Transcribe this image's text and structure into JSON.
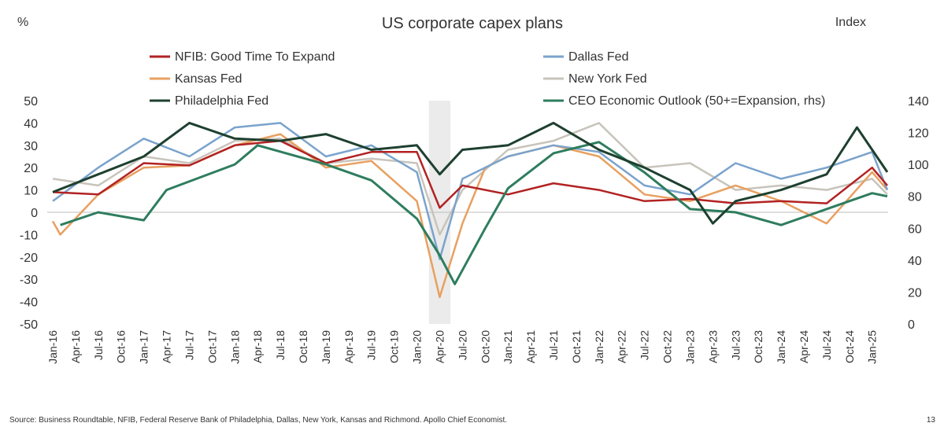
{
  "chart_data": {
    "type": "line",
    "title": "US corporate capex plans",
    "left_axis_unit": "%",
    "right_axis_unit": "Index",
    "source": "Source: Business Roundtable, NFIB, Federal Reserve Bank of Philadelphia, Dallas, New York, Kansas and Richmond. Apollo Chief Economist.",
    "page_number": "13",
    "y_left": {
      "min": -50,
      "max": 50,
      "ticks": [
        50,
        40,
        30,
        20,
        10,
        0,
        -10,
        -20,
        -30,
        -40,
        -50
      ]
    },
    "y_right": {
      "min": 0,
      "max": 140,
      "ticks": [
        140,
        120,
        100,
        80,
        60,
        40,
        20,
        0
      ]
    },
    "x_ticks": [
      "Jan-16",
      "Apr-16",
      "Jul-16",
      "Oct-16",
      "Jan-17",
      "Apr-17",
      "Jul-17",
      "Oct-17",
      "Jan-18",
      "Apr-18",
      "Jul-18",
      "Oct-18",
      "Jan-19",
      "Apr-19",
      "Jul-19",
      "Oct-19",
      "Jan-20",
      "Apr-20",
      "Jul-20",
      "Oct-20",
      "Jan-21",
      "Apr-21",
      "Jul-21",
      "Oct-21",
      "Jan-22",
      "Apr-22",
      "Jul-22",
      "Oct-22",
      "Jan-23",
      "Apr-23",
      "Jul-23",
      "Oct-23",
      "Jan-24",
      "Apr-24",
      "Jul-24",
      "Oct-24",
      "Jan-25"
    ],
    "recession_shade": {
      "from": "Mar-20",
      "to": "May-20"
    },
    "legend_placement": "top",
    "series": [
      {
        "name": "NFIB: Good Time To Expand",
        "color": "#b22222",
        "axis": "left",
        "points": [
          [
            "Jan-16",
            9
          ],
          [
            "Jul-16",
            8
          ],
          [
            "Jan-17",
            22
          ],
          [
            "Jul-17",
            21
          ],
          [
            "Jan-18",
            30
          ],
          [
            "Jul-18",
            32
          ],
          [
            "Jan-19",
            22
          ],
          [
            "Jul-19",
            27
          ],
          [
            "Jan-20",
            27
          ],
          [
            "Apr-20",
            2
          ],
          [
            "Jul-20",
            12
          ],
          [
            "Jan-21",
            8
          ],
          [
            "Jul-21",
            13
          ],
          [
            "Jan-22",
            10
          ],
          [
            "Jul-22",
            5
          ],
          [
            "Jan-23",
            6
          ],
          [
            "Jul-23",
            4
          ],
          [
            "Jan-24",
            5
          ],
          [
            "Jul-24",
            4
          ],
          [
            "Jan-25",
            20
          ],
          [
            "Mar-25",
            12
          ]
        ]
      },
      {
        "name": "Dallas Fed",
        "color": "#7aa3cc",
        "axis": "left",
        "points": [
          [
            "Jan-16",
            5
          ],
          [
            "Jul-16",
            20
          ],
          [
            "Jan-17",
            33
          ],
          [
            "Jul-17",
            25
          ],
          [
            "Jan-18",
            38
          ],
          [
            "Jul-18",
            40
          ],
          [
            "Jan-19",
            25
          ],
          [
            "Jul-19",
            30
          ],
          [
            "Jan-20",
            18
          ],
          [
            "Apr-20",
            -21
          ],
          [
            "Jul-20",
            15
          ],
          [
            "Jan-21",
            25
          ],
          [
            "Jul-21",
            30
          ],
          [
            "Jan-22",
            27
          ],
          [
            "Jul-22",
            12
          ],
          [
            "Jan-23",
            8
          ],
          [
            "Jul-23",
            22
          ],
          [
            "Jan-24",
            15
          ],
          [
            "Jul-24",
            20
          ],
          [
            "Jan-25",
            27
          ],
          [
            "Mar-25",
            10
          ]
        ]
      },
      {
        "name": "Kansas Fed",
        "color": "#e8a060",
        "axis": "left",
        "points": [
          [
            "Jan-16",
            -4
          ],
          [
            "Feb-16",
            -10
          ],
          [
            "Jul-16",
            8
          ],
          [
            "Jan-17",
            20
          ],
          [
            "Jul-17",
            21
          ],
          [
            "Jan-18",
            30
          ],
          [
            "Jul-18",
            35
          ],
          [
            "Jan-19",
            20
          ],
          [
            "Jul-19",
            23
          ],
          [
            "Jan-20",
            5
          ],
          [
            "Apr-20",
            -38
          ],
          [
            "Jul-20",
            -5
          ],
          [
            "Oct-20",
            20
          ],
          [
            "Jan-21",
            25
          ],
          [
            "Jul-21",
            30
          ],
          [
            "Jan-22",
            25
          ],
          [
            "Jul-22",
            8
          ],
          [
            "Jan-23",
            5
          ],
          [
            "Jul-23",
            12
          ],
          [
            "Jan-24",
            5
          ],
          [
            "Jul-24",
            -5
          ],
          [
            "Jan-25",
            18
          ],
          [
            "Mar-25",
            10
          ]
        ]
      },
      {
        "name": "New York Fed",
        "color": "#c8c4bc",
        "axis": "left",
        "points": [
          [
            "Jan-16",
            15
          ],
          [
            "Jul-16",
            12
          ],
          [
            "Jan-17",
            25
          ],
          [
            "Jul-17",
            22
          ],
          [
            "Jan-18",
            32
          ],
          [
            "Jul-18",
            33
          ],
          [
            "Jan-19",
            22
          ],
          [
            "Jul-19",
            24
          ],
          [
            "Jan-20",
            22
          ],
          [
            "Apr-20",
            -10
          ],
          [
            "Jul-20",
            10
          ],
          [
            "Jan-21",
            28
          ],
          [
            "Jul-21",
            32
          ],
          [
            "Jan-22",
            40
          ],
          [
            "Jul-22",
            20
          ],
          [
            "Jan-23",
            22
          ],
          [
            "Jul-23",
            10
          ],
          [
            "Jan-24",
            12
          ],
          [
            "Jul-24",
            10
          ],
          [
            "Jan-25",
            15
          ],
          [
            "Mar-25",
            8
          ]
        ]
      },
      {
        "name": "Philadelphia Fed",
        "color": "#1e4030",
        "axis": "left",
        "points": [
          [
            "Jan-16",
            9
          ],
          [
            "Jul-16",
            17
          ],
          [
            "Jan-17",
            25
          ],
          [
            "Jul-17",
            40
          ],
          [
            "Jan-18",
            33
          ],
          [
            "Jul-18",
            32
          ],
          [
            "Jan-19",
            35
          ],
          [
            "Jul-19",
            28
          ],
          [
            "Jan-20",
            30
          ],
          [
            "Apr-20",
            17
          ],
          [
            "Jul-20",
            28
          ],
          [
            "Jan-21",
            30
          ],
          [
            "Jul-21",
            40
          ],
          [
            "Jan-22",
            28
          ],
          [
            "Jul-22",
            20
          ],
          [
            "Jan-23",
            10
          ],
          [
            "Apr-23",
            -5
          ],
          [
            "Jul-23",
            5
          ],
          [
            "Jan-24",
            10
          ],
          [
            "Jul-24",
            17
          ],
          [
            "Nov-24",
            38
          ],
          [
            "Mar-25",
            18
          ]
        ]
      },
      {
        "name": "CEO Economic Outlook (50+=Expansion, rhs)",
        "color": "#2e7d5e",
        "axis": "right",
        "points": [
          [
            "Feb-16",
            62
          ],
          [
            "Jul-16",
            70
          ],
          [
            "Jan-17",
            65
          ],
          [
            "Apr-17",
            84
          ],
          [
            "Jan-18",
            100
          ],
          [
            "Apr-18",
            112
          ],
          [
            "Jan-19",
            100
          ],
          [
            "Jul-19",
            90
          ],
          [
            "Jan-20",
            66
          ],
          [
            "Apr-20",
            43
          ],
          [
            "Jun-20",
            25
          ],
          [
            "Oct-20",
            60
          ],
          [
            "Jan-21",
            85
          ],
          [
            "Jul-21",
            107
          ],
          [
            "Jan-22",
            114
          ],
          [
            "Jul-22",
            95
          ],
          [
            "Jan-23",
            72
          ],
          [
            "Jul-23",
            70
          ],
          [
            "Jan-24",
            62
          ],
          [
            "Jul-24",
            72
          ],
          [
            "Jan-25",
            82
          ],
          [
            "Mar-25",
            80
          ]
        ]
      }
    ]
  }
}
